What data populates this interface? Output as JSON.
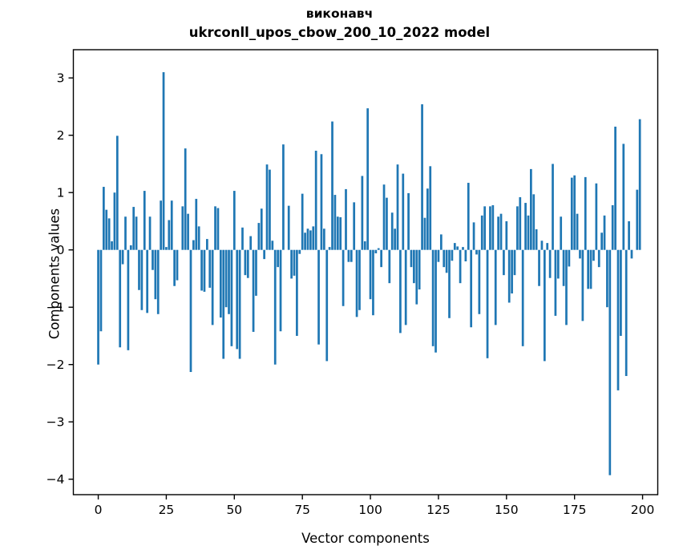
{
  "figure": {
    "title_line1": "виконавч",
    "title_line2": "ukrconll_upos_cbow_200_10_2022 model",
    "xlabel": "Vector components",
    "ylabel": "Components values"
  },
  "chart_data": {
    "type": "bar",
    "title": "виконавч — ukrconll_upos_cbow_200_10_2022 model",
    "xlabel": "Vector components",
    "ylabel": "Components values",
    "bar_color": "#1f77b4",
    "axis_color": "#000000",
    "grid": false,
    "legend": null,
    "x_start": 0,
    "xticks": [
      0,
      25,
      50,
      75,
      100,
      125,
      150,
      175,
      200
    ],
    "yticks": [
      3,
      2,
      1,
      0,
      -1,
      -2,
      -3,
      -4
    ],
    "xlim": [
      -10,
      210
    ],
    "ylim": [
      -4.27,
      3.49
    ],
    "values": [
      -2.0,
      -1.42,
      1.1,
      0.7,
      0.55,
      0.15,
      1.0,
      1.99,
      -1.7,
      -0.25,
      0.58,
      -1.75,
      0.08,
      0.75,
      0.58,
      -0.7,
      -1.05,
      1.03,
      -1.1,
      0.58,
      -0.35,
      -0.86,
      -1.12,
      0.86,
      3.1,
      0.05,
      0.52,
      0.86,
      -0.63,
      -0.53,
      0.0,
      0.76,
      1.77,
      0.63,
      -2.13,
      0.17,
      0.89,
      0.41,
      -0.71,
      -0.73,
      0.19,
      -0.66,
      -1.31,
      0.76,
      0.73,
      -1.18,
      -1.9,
      -1.0,
      -1.12,
      -1.68,
      1.03,
      -1.73,
      -1.9,
      0.39,
      -0.44,
      -0.49,
      0.24,
      -1.43,
      -0.8,
      0.47,
      0.72,
      -0.16,
      1.49,
      1.4,
      0.16,
      -2.0,
      -0.3,
      -1.42,
      1.84,
      0.0,
      0.77,
      -0.5,
      -0.45,
      -1.5,
      -0.07,
      0.98,
      0.3,
      0.37,
      0.34,
      0.41,
      1.73,
      -1.65,
      1.67,
      0.37,
      -1.94,
      0.05,
      2.24,
      0.96,
      0.58,
      0.57,
      -0.98,
      1.06,
      -0.21,
      -0.21,
      0.83,
      -1.17,
      -1.05,
      1.29,
      0.15,
      2.47,
      -0.86,
      -1.14,
      -0.06,
      0.03,
      -0.3,
      1.14,
      0.91,
      -0.58,
      0.65,
      0.37,
      1.49,
      -1.45,
      1.33,
      -1.31,
      0.99,
      -0.3,
      -0.58,
      -0.95,
      -0.69,
      2.54,
      0.56,
      1.07,
      1.46,
      -1.68,
      -1.79,
      -0.21,
      0.27,
      -0.3,
      -0.4,
      -1.19,
      -0.19,
      0.12,
      0.06,
      -0.58,
      0.05,
      -0.2,
      1.17,
      -1.35,
      0.48,
      -0.08,
      -1.12,
      0.6,
      0.76,
      -1.89,
      0.76,
      0.78,
      -1.31,
      0.58,
      0.63,
      -0.44,
      0.5,
      -0.92,
      -0.76,
      -0.44,
      0.76,
      0.92,
      -1.68,
      0.82,
      0.6,
      1.41,
      0.97,
      0.36,
      -0.63,
      0.16,
      -1.94,
      0.12,
      -0.49,
      1.5,
      -1.15,
      -0.5,
      0.58,
      -0.63,
      -1.31,
      -0.29,
      1.26,
      1.3,
      0.63,
      -0.15,
      -1.24,
      1.27,
      -0.68,
      -0.68,
      -0.19,
      1.16,
      -0.3,
      0.3,
      0.6,
      -1.0,
      -3.93,
      0.78,
      2.15,
      -2.45,
      -1.5,
      1.85,
      -2.2,
      0.5,
      -0.15,
      0.0,
      1.05,
      2.28
    ]
  }
}
